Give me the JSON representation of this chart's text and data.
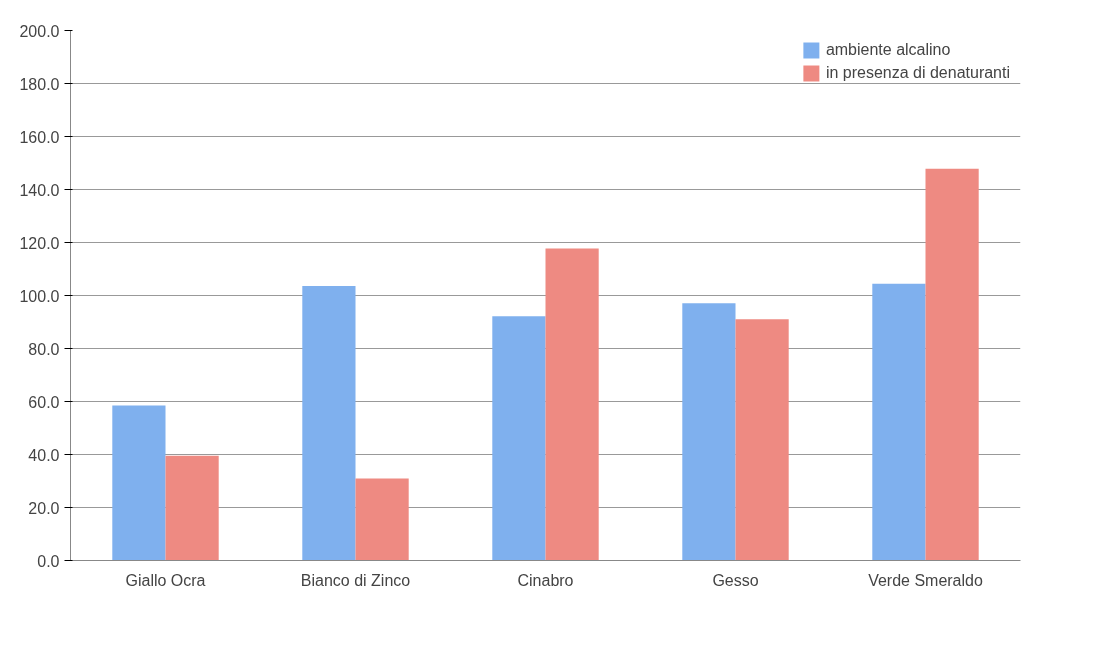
{
  "chart_data": {
    "type": "bar",
    "categories": [
      "Giallo Ocra",
      "Bianco di Zinco",
      "Cinabro",
      "Gesso",
      "Verde Smeraldo"
    ],
    "series": [
      {
        "name": "ambiente alcalino",
        "color": "#7fb0ee",
        "values": [
          58.5,
          103.6,
          92.2,
          97.1,
          104.4
        ]
      },
      {
        "name": "in presenza di denaturanti",
        "color": "#ee8a82",
        "values": [
          39.5,
          30.9,
          117.7,
          91.0,
          147.8
        ]
      }
    ],
    "ylim": [
      0,
      200
    ],
    "yticks": [
      {
        "value": 0,
        "label": "0.0"
      },
      {
        "value": 20,
        "label": "20.0"
      },
      {
        "value": 40,
        "label": "40.0"
      },
      {
        "value": 60,
        "label": "60.0"
      },
      {
        "value": 80,
        "label": "80.0"
      },
      {
        "value": 100,
        "label": "100.0"
      },
      {
        "value": 120,
        "label": "120.0"
      },
      {
        "value": 140,
        "label": "140.0"
      },
      {
        "value": 160,
        "label": "160.0"
      },
      {
        "value": 180,
        "label": "180.0"
      },
      {
        "value": 200,
        "label": "200.0"
      }
    ],
    "grid": "y",
    "legend": "top right"
  }
}
